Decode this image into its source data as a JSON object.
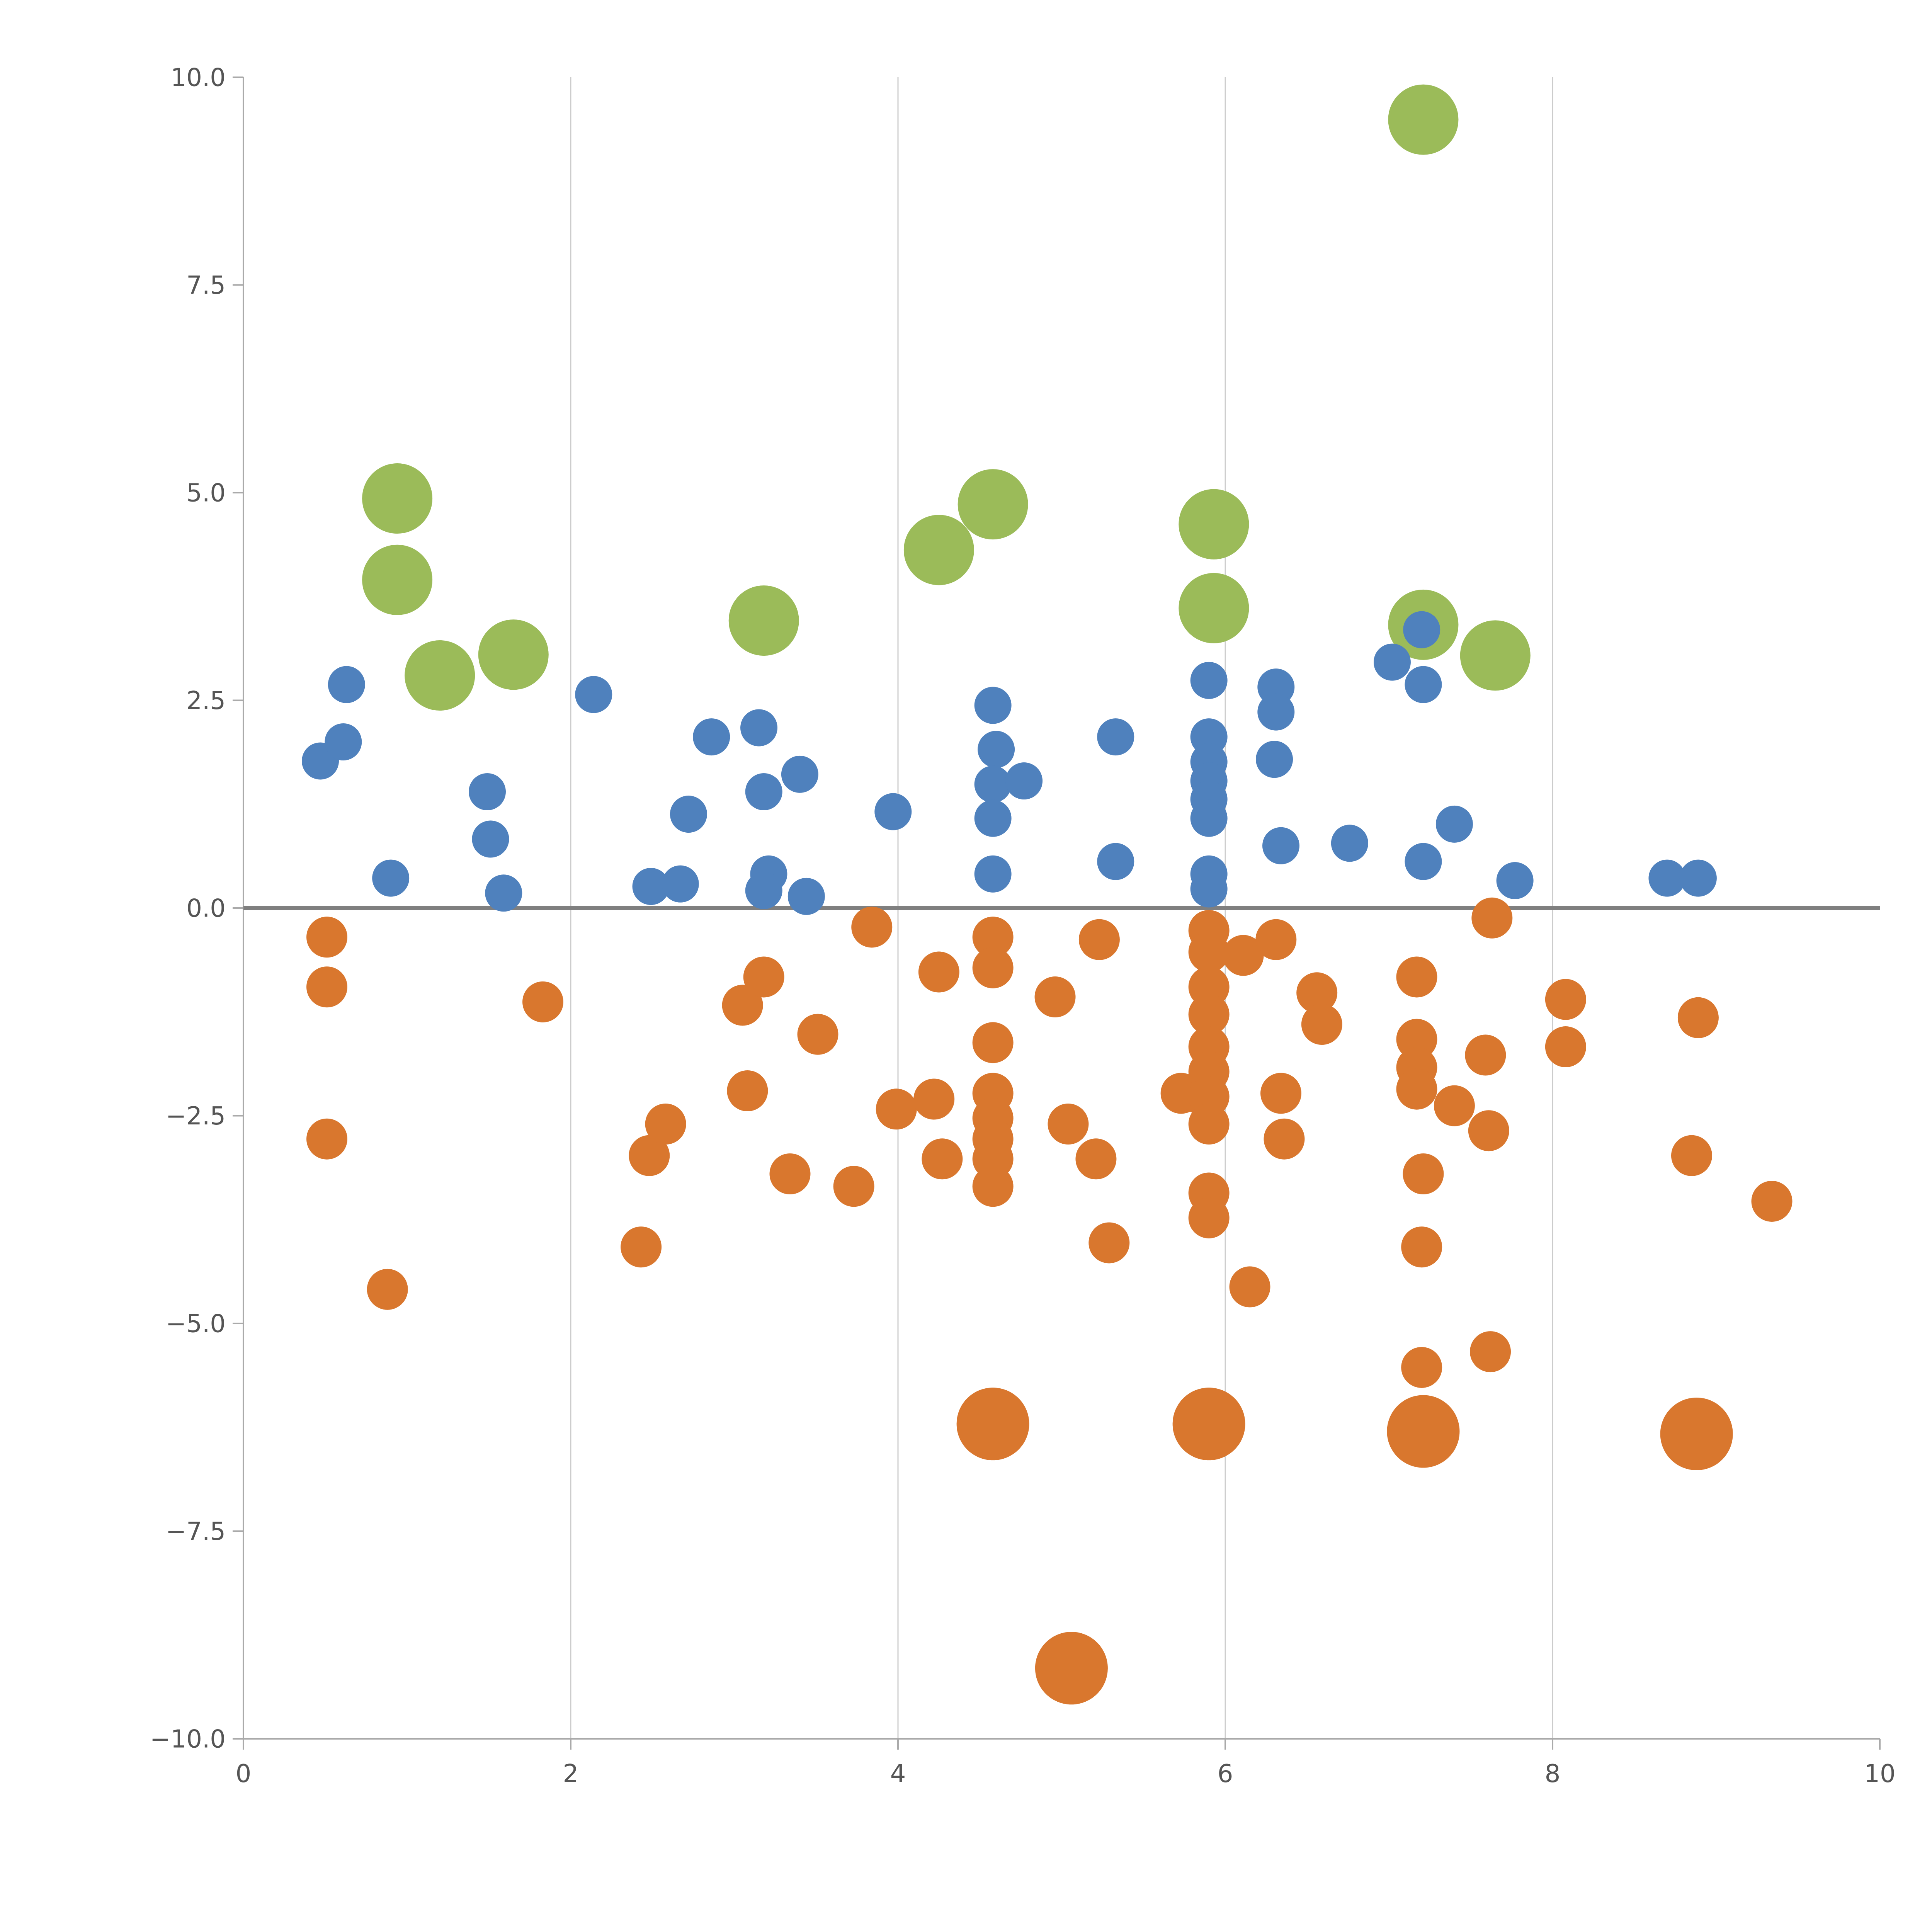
{
  "figure": {
    "background": "#ffffff"
  },
  "chart_data": {
    "type": "scatter",
    "title": "",
    "xlabel": "",
    "ylabel": "",
    "xlim": [
      0,
      10
    ],
    "ylim": [
      -10,
      10
    ],
    "grid": "vertical-only",
    "legend": "none",
    "xticks": {
      "values": [
        0,
        2,
        4,
        6,
        8,
        10
      ],
      "labels": [
        "0",
        "2",
        "4",
        "6",
        "8",
        "10"
      ]
    },
    "yticks": {
      "values": [
        -10,
        -7.5,
        -5,
        -2.5,
        0,
        2.5,
        5,
        7.5,
        10
      ],
      "labels": [
        "−10.0",
        "−7.5",
        "−5.0",
        "−2.5",
        "0.0",
        "2.5",
        "5.0",
        "7.5",
        "10.0"
      ]
    },
    "gridline_x_values": [
      2,
      4,
      6,
      8
    ],
    "zero_line_y": 0,
    "colors": {
      "green": "#9bbb59",
      "blue": "#4f81bd",
      "orange": "#d9772e",
      "gridline": "#cccccc",
      "spine": "#aaaaaa",
      "tick_label": "#555555",
      "zero_line": "#7f7f7f"
    },
    "series": [
      {
        "name": "green-large-bubbles",
        "color": "#9bbb59",
        "marker_radius_px": 91,
        "points": [
          [
            0.94,
            4.93
          ],
          [
            0.94,
            3.95
          ],
          [
            1.2,
            2.8
          ],
          [
            1.65,
            3.05
          ],
          [
            3.18,
            3.46
          ],
          [
            4.25,
            4.31
          ],
          [
            4.58,
            4.86
          ],
          [
            5.93,
            4.62
          ],
          [
            5.93,
            3.61
          ],
          [
            7.21,
            9.49
          ],
          [
            7.21,
            3.41
          ],
          [
            7.65,
            3.04
          ]
        ]
      },
      {
        "name": "blue-small-dots",
        "color": "#4f81bd",
        "marker_radius_px": 48,
        "points": [
          [
            0.47,
            1.77
          ],
          [
            0.61,
            2.0
          ],
          [
            0.63,
            2.69
          ],
          [
            0.9,
            0.36
          ],
          [
            1.49,
            1.4
          ],
          [
            1.51,
            0.83
          ],
          [
            1.59,
            0.18
          ],
          [
            2.14,
            2.57
          ],
          [
            2.49,
            0.26
          ],
          [
            2.67,
            0.29
          ],
          [
            2.72,
            1.13
          ],
          [
            2.86,
            2.06
          ],
          [
            3.15,
            2.17
          ],
          [
            3.18,
            1.4
          ],
          [
            3.21,
            0.41
          ],
          [
            3.18,
            0.21
          ],
          [
            3.4,
            1.61
          ],
          [
            3.44,
            0.14
          ],
          [
            3.97,
            1.16
          ],
          [
            4.58,
            2.44
          ],
          [
            4.6,
            1.91
          ],
          [
            4.58,
            1.49
          ],
          [
            4.58,
            1.08
          ],
          [
            4.58,
            0.41
          ],
          [
            4.77,
            1.53
          ],
          [
            5.33,
            2.06
          ],
          [
            5.33,
            0.56
          ],
          [
            5.9,
            2.74
          ],
          [
            5.9,
            2.06
          ],
          [
            5.9,
            1.76
          ],
          [
            5.9,
            1.53
          ],
          [
            5.9,
            1.31
          ],
          [
            5.9,
            1.08
          ],
          [
            5.9,
            0.41
          ],
          [
            5.9,
            0.23
          ],
          [
            6.31,
            2.66
          ],
          [
            6.31,
            2.36
          ],
          [
            6.3,
            1.79
          ],
          [
            6.34,
            0.75
          ],
          [
            6.76,
            0.78
          ],
          [
            7.02,
            2.96
          ],
          [
            7.2,
            3.35
          ],
          [
            7.21,
            2.69
          ],
          [
            7.21,
            0.56
          ],
          [
            7.4,
            1.01
          ],
          [
            7.77,
            0.33
          ],
          [
            8.7,
            0.36
          ],
          [
            8.89,
            0.36
          ]
        ]
      },
      {
        "name": "orange-medium-dots",
        "color": "#d9772e",
        "marker_radius_px": 53,
        "points": [
          [
            0.51,
            -0.35
          ],
          [
            0.51,
            -0.95
          ],
          [
            0.51,
            -2.78
          ],
          [
            0.88,
            -4.59
          ],
          [
            1.83,
            -1.13
          ],
          [
            2.43,
            -4.08
          ],
          [
            2.48,
            -2.98
          ],
          [
            2.58,
            -2.6
          ],
          [
            3.05,
            -1.17
          ],
          [
            3.08,
            -2.2
          ],
          [
            3.18,
            -0.83
          ],
          [
            3.34,
            -3.2
          ],
          [
            3.51,
            -1.52
          ],
          [
            3.73,
            -3.35
          ],
          [
            3.84,
            -0.23
          ],
          [
            3.99,
            -2.42
          ],
          [
            4.22,
            -2.3
          ],
          [
            4.25,
            -0.77
          ],
          [
            4.27,
            -3.02
          ],
          [
            4.58,
            -0.35
          ],
          [
            4.58,
            -0.72
          ],
          [
            4.58,
            -1.62
          ],
          [
            4.58,
            -2.23
          ],
          [
            4.58,
            -2.53
          ],
          [
            4.58,
            -2.78
          ],
          [
            4.58,
            -3.02
          ],
          [
            4.58,
            -3.35
          ],
          [
            4.96,
            -1.07
          ],
          [
            5.04,
            -2.6
          ],
          [
            5.21,
            -3.02
          ],
          [
            5.23,
            -0.38
          ],
          [
            5.29,
            -4.03
          ],
          [
            5.73,
            -2.23
          ],
          [
            5.84,
            -2.23
          ],
          [
            5.9,
            -0.27
          ],
          [
            5.9,
            -0.53
          ],
          [
            5.9,
            -0.95
          ],
          [
            5.9,
            -1.28
          ],
          [
            5.9,
            -1.67
          ],
          [
            5.9,
            -1.97
          ],
          [
            5.9,
            -2.27
          ],
          [
            5.9,
            -2.6
          ],
          [
            5.9,
            -3.43
          ],
          [
            5.9,
            -3.73
          ],
          [
            6.11,
            -0.57
          ],
          [
            6.15,
            -4.56
          ],
          [
            6.31,
            -0.38
          ],
          [
            6.34,
            -2.23
          ],
          [
            6.36,
            -2.78
          ],
          [
            6.56,
            -1.02
          ],
          [
            6.59,
            -1.4
          ],
          [
            7.17,
            -0.83
          ],
          [
            7.17,
            -1.58
          ],
          [
            7.17,
            -1.92
          ],
          [
            7.17,
            -2.18
          ],
          [
            7.21,
            -3.2
          ],
          [
            7.2,
            -4.08
          ],
          [
            7.2,
            -5.53
          ],
          [
            7.4,
            -2.38
          ],
          [
            7.59,
            -1.77
          ],
          [
            7.61,
            -2.68
          ],
          [
            7.63,
            -0.12
          ],
          [
            7.62,
            -5.34
          ],
          [
            8.08,
            -1.1
          ],
          [
            8.08,
            -1.67
          ],
          [
            8.85,
            -2.98
          ],
          [
            8.89,
            -1.32
          ],
          [
            9.34,
            -3.53
          ]
        ]
      },
      {
        "name": "orange-large-bubbles",
        "color": "#d9772e",
        "marker_radius_px": 94,
        "points": [
          [
            4.58,
            -6.21
          ],
          [
            5.06,
            -9.15
          ],
          [
            5.9,
            -6.21
          ],
          [
            7.21,
            -6.3
          ],
          [
            8.88,
            -6.33
          ]
        ]
      }
    ]
  }
}
